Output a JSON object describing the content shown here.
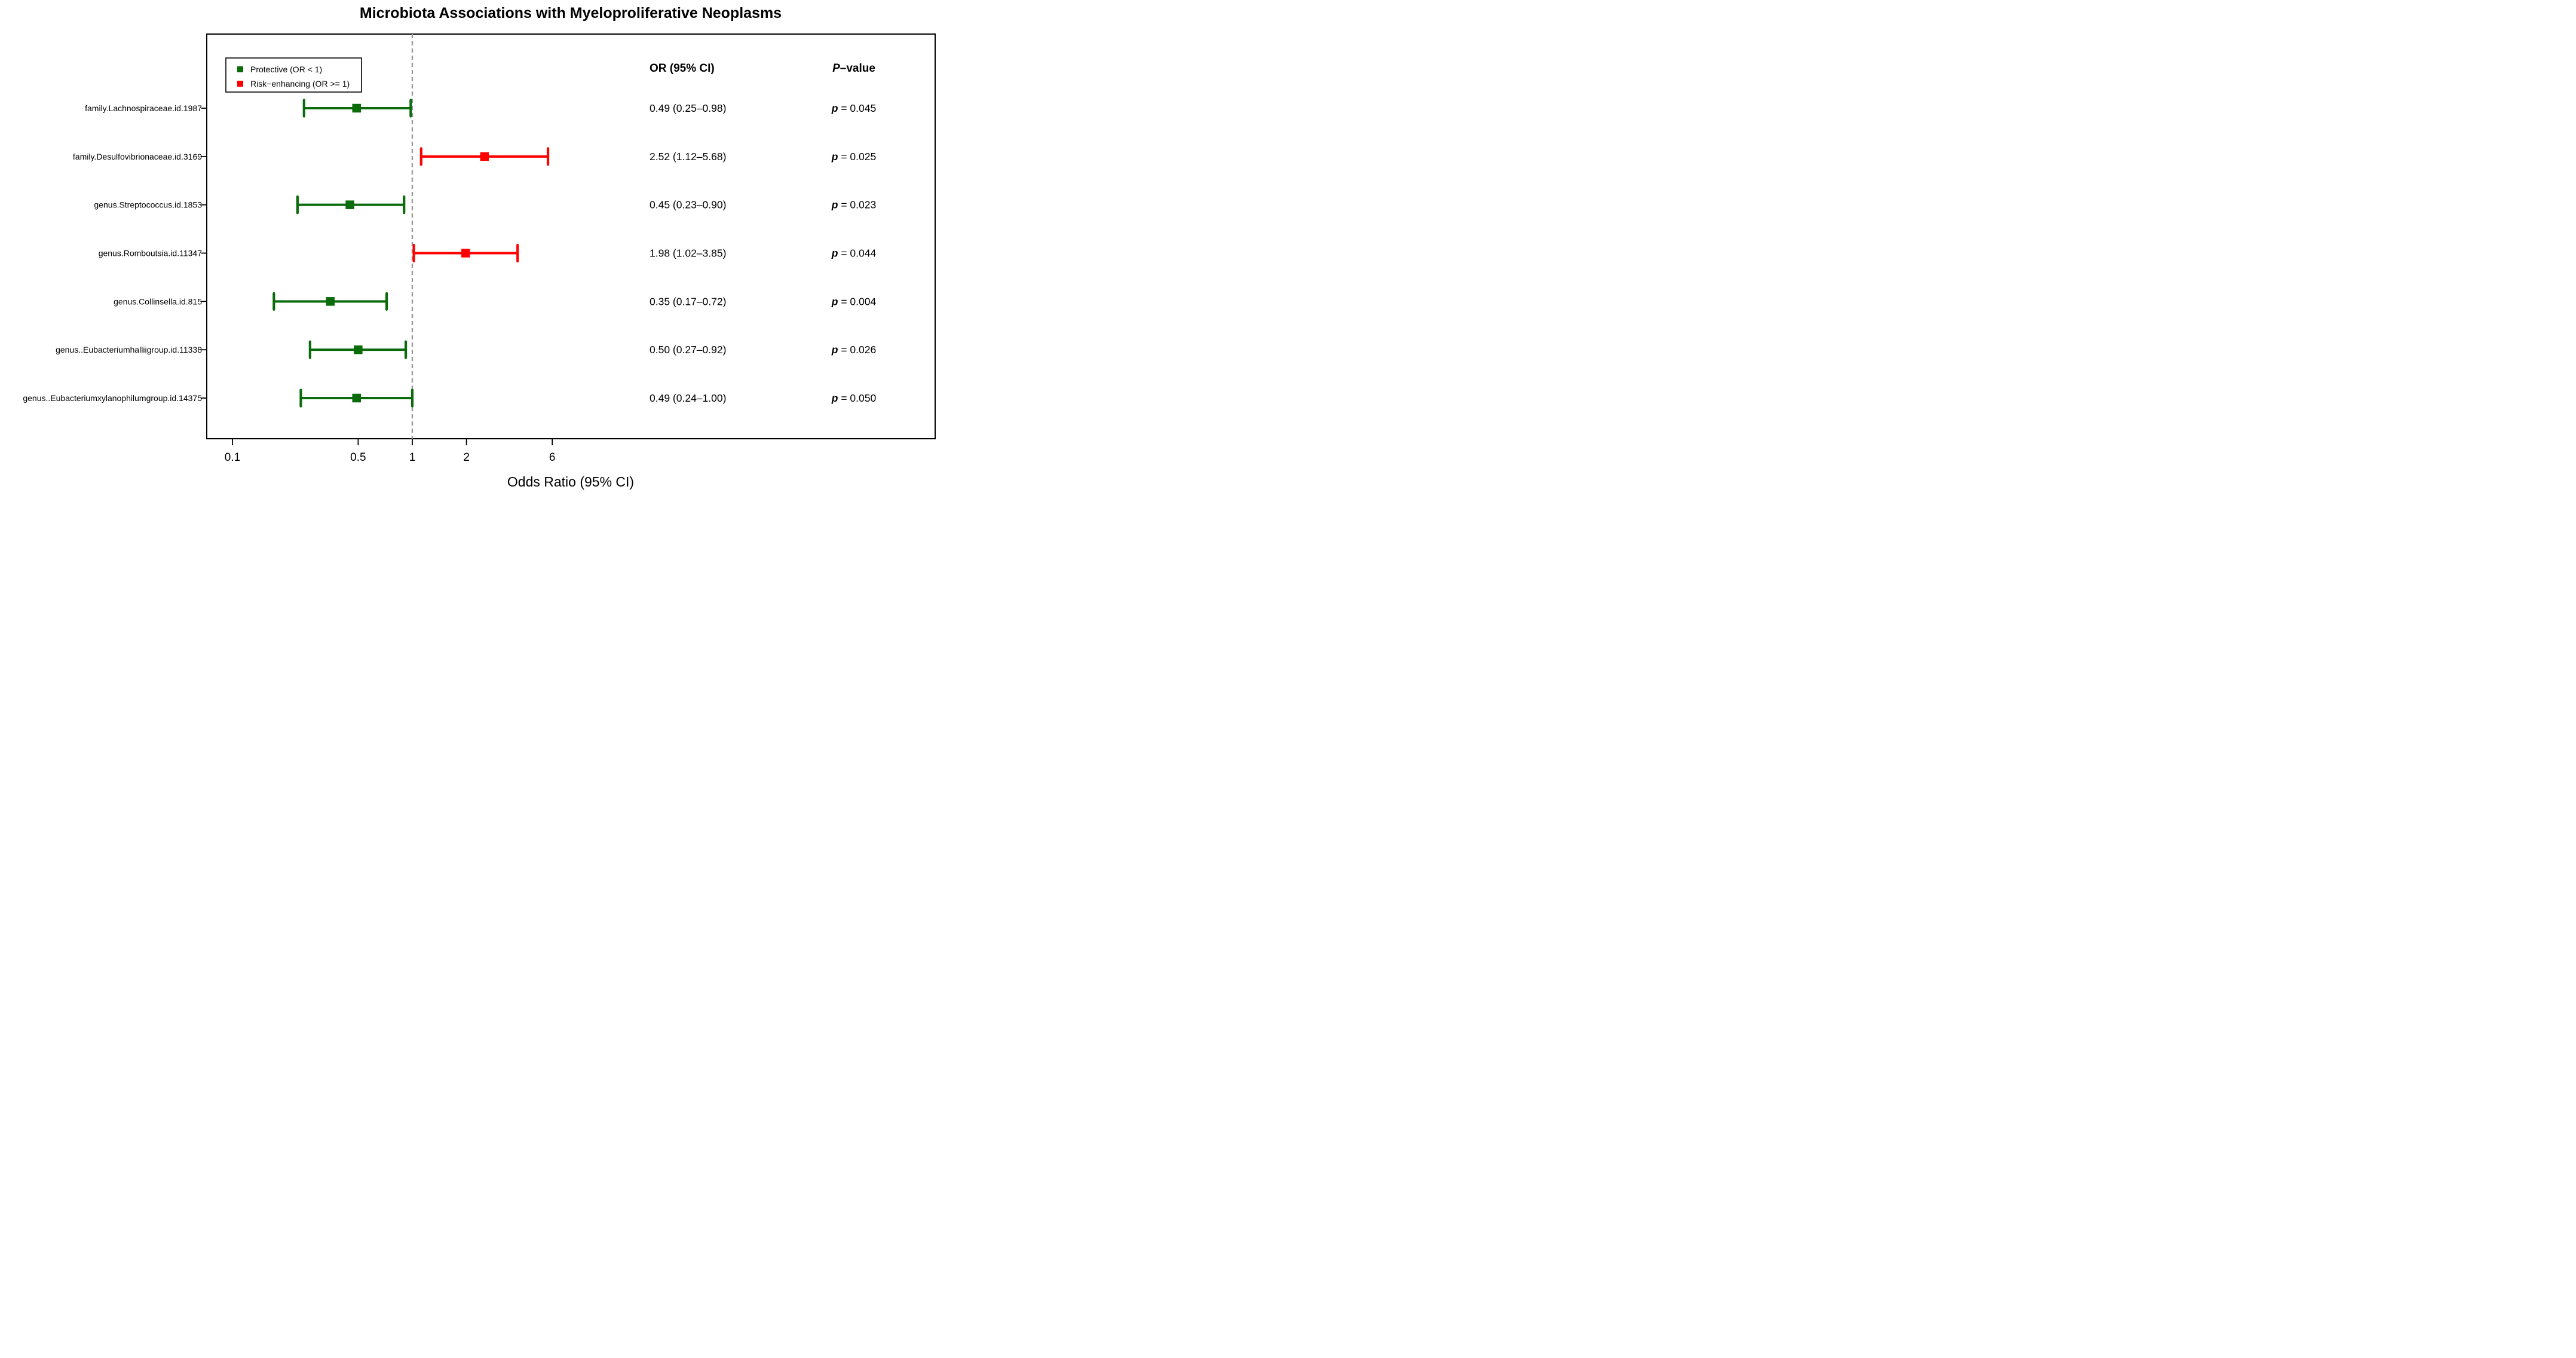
{
  "title": "Microbiota Associations with Myeloproliferative Neoplasms",
  "legend": {
    "items": [
      {
        "label": "Protective (OR < 1)",
        "color": "#0a6b0b"
      },
      {
        "label": "Risk−enhancing (OR >= 1)",
        "color": "#ff0000"
      }
    ]
  },
  "columns": {
    "or_header": "OR (95% CI)",
    "p_header_italic": "P",
    "p_header_rest": "–value"
  },
  "axis": {
    "label": "Odds Ratio (95% CI)",
    "scale": "log10",
    "ticks": [
      0.1,
      0.5,
      1,
      2,
      6
    ],
    "tick_labels": [
      "0.1",
      "0.5",
      "1",
      "2",
      "6"
    ],
    "reference_line": 1
  },
  "colors": {
    "protective": "#0a6b0b",
    "risk-enhancing": "#ff0000",
    "reference_line": "#9b9b9b"
  },
  "chart_data": {
    "type": "forest",
    "x_scale": "log10",
    "xlabel": "Odds Ratio (95% CI)",
    "rows": [
      {
        "label": "family.Lachnospiraceae.id.1987",
        "or": 0.49,
        "ci_low": 0.25,
        "ci_high": 0.98,
        "or_ci_text": "0.49 (0.25–0.98)",
        "p_text": "p = 0.045",
        "group": "protective"
      },
      {
        "label": "family.Desulfovibrionaceae.id.3169",
        "or": 2.52,
        "ci_low": 1.12,
        "ci_high": 5.68,
        "or_ci_text": "2.52 (1.12–5.68)",
        "p_text": "p = 0.025",
        "group": "risk-enhancing"
      },
      {
        "label": "genus.Streptococcus.id.1853",
        "or": 0.45,
        "ci_low": 0.23,
        "ci_high": 0.9,
        "or_ci_text": "0.45 (0.23–0.90)",
        "p_text": "p = 0.023",
        "group": "protective"
      },
      {
        "label": "genus.Romboutsia.id.11347",
        "or": 1.98,
        "ci_low": 1.02,
        "ci_high": 3.85,
        "or_ci_text": "1.98 (1.02–3.85)",
        "p_text": "p = 0.044",
        "group": "risk-enhancing"
      },
      {
        "label": "genus.Collinsella.id.815",
        "or": 0.35,
        "ci_low": 0.17,
        "ci_high": 0.72,
        "or_ci_text": "0.35 (0.17–0.72)",
        "p_text": "p = 0.004",
        "group": "protective"
      },
      {
        "label": "genus..Eubacteriumhalliigroup.id.11338",
        "or": 0.5,
        "ci_low": 0.27,
        "ci_high": 0.92,
        "or_ci_text": "0.50 (0.27–0.92)",
        "p_text": "p = 0.026",
        "group": "protective"
      },
      {
        "label": "genus..Eubacteriumxylanophilumgroup.id.14375",
        "or": 0.49,
        "ci_low": 0.24,
        "ci_high": 1.0,
        "or_ci_text": "0.49 (0.24–1.00)",
        "p_text": "p = 0.050",
        "group": "protective"
      }
    ]
  }
}
